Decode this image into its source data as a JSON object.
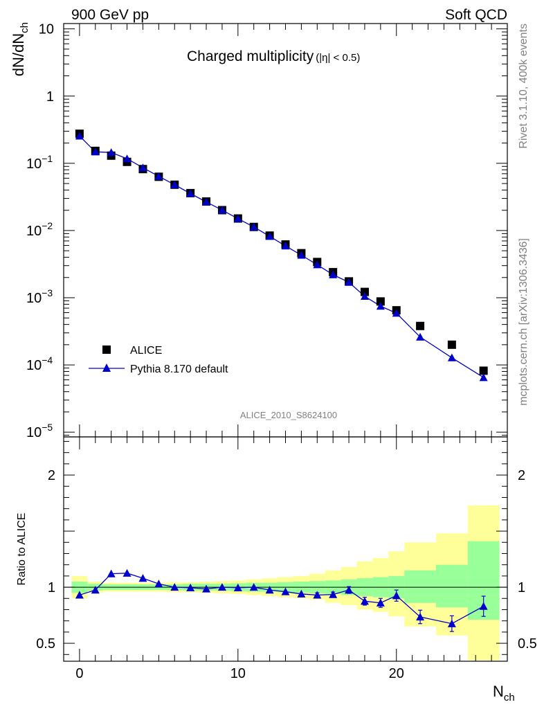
{
  "header": {
    "left": "900 GeV pp",
    "right": "Soft QCD"
  },
  "side_text": {
    "top": "Rivet 3.1.10,  400k events",
    "bottom": "mcplots.cern.ch [arXiv:1306.3436]"
  },
  "analysis_id": "ALICE_2010_S8624100",
  "colors": {
    "data": "#000000",
    "mc": "#0000cc",
    "band_inner": "#99ff99",
    "band_outer": "#ffff99"
  },
  "chart_data": [
    {
      "type": "scatter",
      "title_main": "Charged multiplicity",
      "title_sub": "(|η| < 0.5)",
      "xlabel": "N",
      "xlabel_sub": "ch",
      "ylabel": "dN/dN",
      "ylabel_sub": "ch",
      "yscale": "log",
      "xlim": [
        -1,
        27
      ],
      "ylim": [
        8.5e-06,
        12
      ],
      "y_ticks": [
        {
          "value": 10,
          "label": "10"
        },
        {
          "value": 1,
          "label": "1"
        },
        {
          "value": 0.1,
          "label": "10",
          "exp": "−1"
        },
        {
          "value": 0.01,
          "label": "10",
          "exp": "−2"
        },
        {
          "value": 0.001,
          "label": "10",
          "exp": "−3"
        },
        {
          "value": 0.0001,
          "label": "10",
          "exp": "−4"
        },
        {
          "value": 1e-05,
          "label": "10",
          "exp": "−5"
        }
      ],
      "legend": [
        "ALICE",
        "Pythia 8.170 default"
      ],
      "legend_position": "bottom-left",
      "series": [
        {
          "name": "ALICE",
          "marker": "square",
          "x": [
            0,
            1,
            2,
            3,
            4,
            5,
            6,
            7,
            8,
            9,
            10,
            11,
            12,
            13,
            14,
            15,
            16,
            17,
            18,
            19,
            20,
            21.5,
            23.5,
            25.5
          ],
          "y": [
            0.275,
            0.153,
            0.13,
            0.105,
            0.082,
            0.063,
            0.048,
            0.036,
            0.027,
            0.0201,
            0.0151,
            0.0113,
            0.0084,
            0.0062,
            0.0046,
            0.0034,
            0.0024,
            0.00175,
            0.00122,
            0.00088,
            0.00065,
            0.00038,
            0.0002,
            8.2e-05
          ]
        },
        {
          "name": "Pythia 8.170 default",
          "marker": "triangle",
          "x": [
            0,
            1,
            2,
            3,
            4,
            5,
            6,
            7,
            8,
            9,
            10,
            11,
            12,
            13,
            14,
            15,
            16,
            17,
            18,
            19,
            20,
            21.5,
            23.5,
            25.5
          ],
          "y": [
            0.255,
            0.148,
            0.145,
            0.117,
            0.086,
            0.064,
            0.048,
            0.0355,
            0.0266,
            0.0201,
            0.015,
            0.0113,
            0.0082,
            0.0059,
            0.0043,
            0.0031,
            0.0022,
            0.0017,
            0.00105,
            0.00075,
            0.00059,
            0.00026,
            0.000128,
            6.5e-05
          ]
        }
      ]
    },
    {
      "type": "scatter",
      "ylabel": "Ratio to ALICE",
      "xlim": [
        -1,
        27
      ],
      "ylim": [
        0.34,
        2.34
      ],
      "y_ticks": [
        {
          "value": 0.5,
          "label": "0.5"
        },
        {
          "value": 1,
          "label": "1"
        },
        {
          "value": 2,
          "label": "2"
        }
      ],
      "x_ticks": [
        {
          "value": 0,
          "label": "0"
        },
        {
          "value": 10,
          "label": "10"
        },
        {
          "value": 20,
          "label": "20"
        }
      ],
      "reference_line": 1,
      "bin_edges": [
        -0.5,
        0.5,
        1.5,
        2.5,
        3.5,
        4.5,
        5.5,
        6.5,
        7.5,
        8.5,
        9.5,
        10.5,
        11.5,
        12.5,
        13.5,
        14.5,
        15.5,
        16.5,
        17.5,
        18.5,
        19.5,
        20.5,
        22.5,
        24.5,
        26.5
      ],
      "band_inner": [
        [
          0.95,
          1.05
        ],
        [
          0.97,
          1.03
        ],
        [
          0.975,
          1.025
        ],
        [
          0.975,
          1.025
        ],
        [
          0.975,
          1.025
        ],
        [
          0.975,
          1.025
        ],
        [
          0.975,
          1.025
        ],
        [
          0.97,
          1.03
        ],
        [
          0.97,
          1.03
        ],
        [
          0.97,
          1.03
        ],
        [
          0.965,
          1.035
        ],
        [
          0.96,
          1.04
        ],
        [
          0.96,
          1.04
        ],
        [
          0.955,
          1.045
        ],
        [
          0.95,
          1.05
        ],
        [
          0.945,
          1.055
        ],
        [
          0.94,
          1.06
        ],
        [
          0.93,
          1.07
        ],
        [
          0.92,
          1.08
        ],
        [
          0.91,
          1.09
        ],
        [
          0.9,
          1.1
        ],
        [
          0.86,
          1.15
        ],
        [
          0.82,
          1.2
        ],
        [
          0.71,
          1.41
        ]
      ],
      "band_outer": [
        [
          0.9,
          1.1
        ],
        [
          0.95,
          1.05
        ],
        [
          0.96,
          1.04
        ],
        [
          0.96,
          1.04
        ],
        [
          0.96,
          1.04
        ],
        [
          0.96,
          1.04
        ],
        [
          0.955,
          1.045
        ],
        [
          0.955,
          1.045
        ],
        [
          0.95,
          1.05
        ],
        [
          0.945,
          1.055
        ],
        [
          0.94,
          1.06
        ],
        [
          0.93,
          1.07
        ],
        [
          0.92,
          1.08
        ],
        [
          0.91,
          1.09
        ],
        [
          0.9,
          1.1
        ],
        [
          0.89,
          1.12
        ],
        [
          0.86,
          1.15
        ],
        [
          0.84,
          1.18
        ],
        [
          0.8,
          1.23
        ],
        [
          0.78,
          1.26
        ],
        [
          0.74,
          1.32
        ],
        [
          0.65,
          1.4
        ],
        [
          0.57,
          1.48
        ],
        [
          0.35,
          1.73
        ]
      ],
      "series": [
        {
          "name": "Pythia 8.170 default / ALICE",
          "marker": "triangle",
          "x": [
            0,
            1,
            2,
            3,
            4,
            5,
            6,
            7,
            8,
            9,
            10,
            11,
            12,
            13,
            14,
            15,
            16,
            17,
            18,
            19,
            20,
            21.5,
            23.5,
            25.5
          ],
          "y": [
            0.93,
            0.975,
            1.12,
            1.125,
            1.08,
            1.03,
            1.0,
            0.995,
            0.985,
            1.0,
            0.995,
            1.0,
            0.975,
            0.96,
            0.94,
            0.93,
            0.935,
            0.975,
            0.875,
            0.86,
            0.925,
            0.735,
            0.675,
            0.83
          ],
          "err": [
            0.01,
            0.01,
            0.01,
            0.01,
            0.01,
            0.008,
            0.008,
            0.008,
            0.008,
            0.008,
            0.01,
            0.01,
            0.012,
            0.014,
            0.015,
            0.02,
            0.022,
            0.03,
            0.035,
            0.04,
            0.05,
            0.06,
            0.07,
            0.09
          ]
        }
      ]
    }
  ]
}
